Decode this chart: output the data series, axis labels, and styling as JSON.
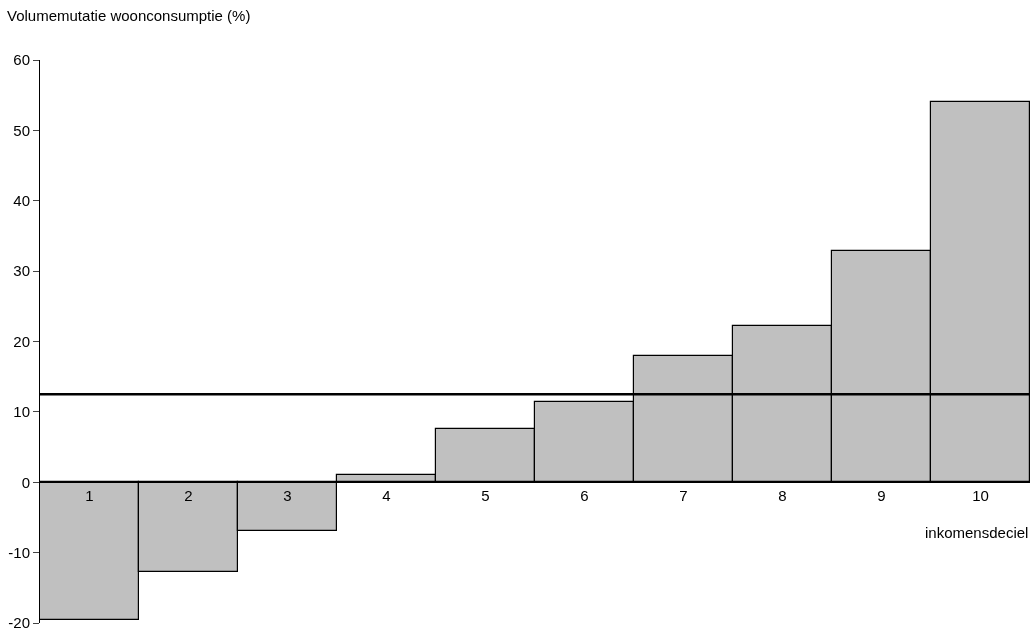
{
  "chart_data": {
    "type": "bar",
    "ylabel": "Volumemutatie woonconsumptie (%)",
    "xlabel": "inkomensdeciel",
    "categories": [
      "1",
      "2",
      "3",
      "4",
      "5",
      "6",
      "7",
      "8",
      "9",
      "10"
    ],
    "values": [
      -19.6,
      -12.7,
      -6.9,
      1.0,
      7.5,
      11.4,
      18.0,
      22.2,
      32.8,
      54.1
    ],
    "color": "#c0c0c0",
    "ylim": [
      -20,
      60
    ],
    "yticks": [
      -20,
      -10,
      0,
      10,
      20,
      30,
      40,
      50,
      60
    ],
    "ref_lines": [
      {
        "axis": "y",
        "value": 12.5,
        "color": "#000000"
      }
    ]
  }
}
